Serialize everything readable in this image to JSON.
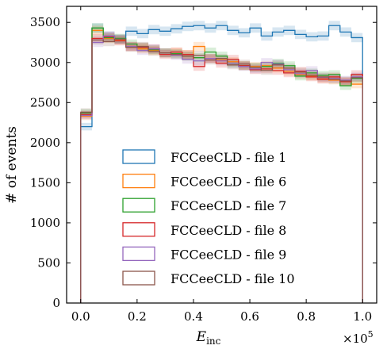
{
  "chart_data": {
    "type": "histogram-step",
    "title": "",
    "xlabel": "E_inc",
    "xlabel_main": "E",
    "xlabel_sub": "inc",
    "ylabel": "# of events",
    "x_multiplier": "×10",
    "x_multiplier_base": "×10",
    "x_multiplier_exp": "5",
    "xlim": [
      -0.05,
      1.05
    ],
    "ylim": [
      0,
      3700
    ],
    "xticks": [
      0.0,
      0.2,
      0.4,
      0.6,
      0.8,
      1.0
    ],
    "xtick_labels": [
      "0.0",
      "0.2",
      "0.4",
      "0.6",
      "0.8",
      "1.0"
    ],
    "yticks": [
      0,
      500,
      1000,
      1500,
      2000,
      2500,
      3000,
      3500
    ],
    "ytick_labels": [
      "0",
      "500",
      "1000",
      "1500",
      "2000",
      "2500",
      "3000",
      "3500"
    ],
    "bin_edges": [
      0.0,
      0.04,
      0.08,
      0.12,
      0.16,
      0.2,
      0.24,
      0.28,
      0.32,
      0.36,
      0.4,
      0.44,
      0.48,
      0.52,
      0.56,
      0.6,
      0.64,
      0.68,
      0.72,
      0.76,
      0.8,
      0.84,
      0.88,
      0.92,
      0.96,
      1.0
    ],
    "legend_position": "lower-center",
    "uncertainty_band": true,
    "series": [
      {
        "name": "FCCeeCLD - file 1",
        "color": "#1f77b4",
        "values": [
          2200,
          3430,
          3330,
          3290,
          3390,
          3360,
          3410,
          3390,
          3420,
          3450,
          3460,
          3430,
          3460,
          3400,
          3370,
          3430,
          3330,
          3380,
          3400,
          3350,
          3320,
          3330,
          3460,
          3380,
          3310
        ]
      },
      {
        "name": "FCCeeCLD - file 6",
        "color": "#ff7f0e",
        "values": [
          2330,
          3400,
          3300,
          3280,
          3200,
          3170,
          3150,
          3120,
          3130,
          3100,
          3200,
          3050,
          3030,
          3010,
          2960,
          2950,
          2960,
          2930,
          2890,
          2850,
          2830,
          2800,
          2780,
          2760,
          2730
        ]
      },
      {
        "name": "FCCeeCLD - file 7",
        "color": "#2ca02c",
        "values": [
          2370,
          3430,
          3310,
          3300,
          3230,
          3190,
          3160,
          3120,
          3110,
          3080,
          3060,
          3130,
          3080,
          2990,
          2960,
          2940,
          2950,
          2990,
          2960,
          2830,
          2870,
          2840,
          2850,
          2710,
          2800
        ]
      },
      {
        "name": "FCCeeCLD - file 8",
        "color": "#d62728",
        "values": [
          2350,
          3300,
          3320,
          3270,
          3200,
          3190,
          3170,
          3100,
          3130,
          3100,
          2950,
          3050,
          2990,
          3040,
          2960,
          2910,
          2920,
          2900,
          2870,
          2890,
          2820,
          2790,
          2820,
          2760,
          2850
        ]
      },
      {
        "name": "FCCeeCLD - file 9",
        "color": "#9467bd",
        "values": [
          2340,
          3250,
          3330,
          3290,
          3200,
          3150,
          3170,
          3120,
          3090,
          3040,
          3020,
          3050,
          3020,
          2990,
          2950,
          2920,
          3000,
          2980,
          2910,
          2860,
          2900,
          2810,
          2800,
          2780,
          2820
        ]
      },
      {
        "name": "FCCeeCLD - file 10",
        "color": "#8c564b",
        "values": [
          2380,
          3280,
          3260,
          3290,
          3190,
          3200,
          3140,
          3120,
          3100,
          3080,
          3090,
          3030,
          3050,
          2970,
          2980,
          2940,
          2900,
          2970,
          2930,
          2880,
          2840,
          2820,
          2790,
          2770,
          2810
        ]
      }
    ]
  }
}
